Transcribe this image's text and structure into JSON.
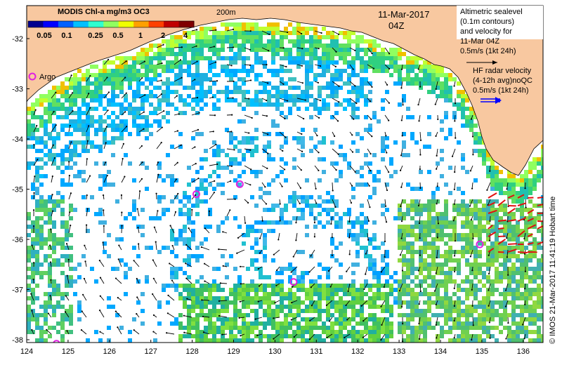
{
  "map": {
    "date_label": "11-Mar-2017",
    "time_label": "04Z",
    "depth_label": "200m",
    "credit": "© IMOS 21-Mar-2017 11:41:19 Hobart time",
    "colorbar": {
      "title": "MODIS Chl-a mg/m3 OC3",
      "ticks": [
        "0.05",
        "0.1",
        "0.25",
        "0.5",
        "1",
        "2",
        "4"
      ],
      "colors": [
        "#00008f",
        "#0000ff",
        "#0060ff",
        "#00c0ff",
        "#30ffcf",
        "#90ff60",
        "#f0ff00",
        "#ffa000",
        "#ff4000",
        "#c00000",
        "#800000"
      ]
    },
    "argo": {
      "label": "Argo",
      "color": "#e020e0"
    },
    "altimetry_legend": {
      "lines": [
        "Altimetric sealevel",
        "(0.1m contours)",
        "and velocity for",
        "11-Mar 04Z",
        "0.5m/s (1kt 24h)"
      ]
    },
    "hf_radar_legend": {
      "lines": [
        "HF radar velocity",
        "(4-12h avg)noQC",
        "0.5m/s (1kt 24h)"
      ],
      "color": "#0000ff"
    },
    "x_ticks": [
      "124",
      "125",
      "126",
      "127",
      "128",
      "129",
      "130",
      "131",
      "132",
      "133",
      "134",
      "135",
      "136"
    ],
    "y_ticks": [
      "-32",
      "-33",
      "-34",
      "-35",
      "-36",
      "-37",
      "-38"
    ],
    "argo_floats": [
      {
        "lon": 128.1,
        "lat": -35.1
      },
      {
        "lon": 129.15,
        "lat": -34.9
      },
      {
        "lon": 130.45,
        "lat": -36.85
      },
      {
        "lon": 134.95,
        "lat": -36.1
      },
      {
        "lon": 124.72,
        "lat": -38.08
      }
    ],
    "colors": {
      "land": "#f8c8a0",
      "ocean": "#ffffff",
      "vector": "#000000",
      "hf_vector": "#e01010"
    }
  }
}
